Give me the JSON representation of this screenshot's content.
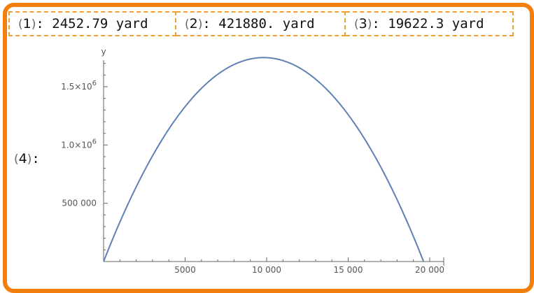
{
  "outputs": [
    {
      "tag": "1",
      "value": "2452.79 yard"
    },
    {
      "tag": "2",
      "value": "421880. yard"
    },
    {
      "tag": "3",
      "value": "19622.3 yard"
    }
  ],
  "plot_tag": "4",
  "colors": {
    "frame": "#f47e0b",
    "cell_border": "#f0a030",
    "curve": "#5e81b5",
    "axis": "#666666"
  },
  "chart_data": {
    "type": "line",
    "title": "",
    "xlabel": "",
    "ylabel": "y",
    "xlim": [
      0,
      20000
    ],
    "ylim": [
      0,
      1800000
    ],
    "grid": false,
    "x_ticks": [
      {
        "value": 5000,
        "label": "5000"
      },
      {
        "value": 10000,
        "label": "10 000"
      },
      {
        "value": 15000,
        "label": "15 000"
      },
      {
        "value": 20000,
        "label": "20 000"
      }
    ],
    "y_ticks": [
      {
        "value": 500000,
        "label": "500 000",
        "base": "",
        "exp": ""
      },
      {
        "value": 1000000,
        "label": "",
        "base": "1.0×10",
        "exp": "6"
      },
      {
        "value": 1500000,
        "label": "",
        "base": "1.5×10",
        "exp": "6"
      }
    ],
    "series": [
      {
        "x": [
          0,
          1000,
          2000,
          3000,
          4000,
          5000,
          6000,
          7000,
          8000,
          9000,
          9811,
          11000,
          12000,
          13000,
          14000,
          15000,
          16000,
          17000,
          18000,
          19000,
          19622
        ],
        "y": [
          0,
          326000,
          630000,
          913000,
          1170000,
          1405000,
          1600000,
          1750000,
          1645000,
          1670000,
          1688000,
          1660000,
          1598000,
          1498000,
          1360000,
          1188000,
          975000,
          733000,
          446000,
          123000,
          0
        ]
      }
    ]
  }
}
